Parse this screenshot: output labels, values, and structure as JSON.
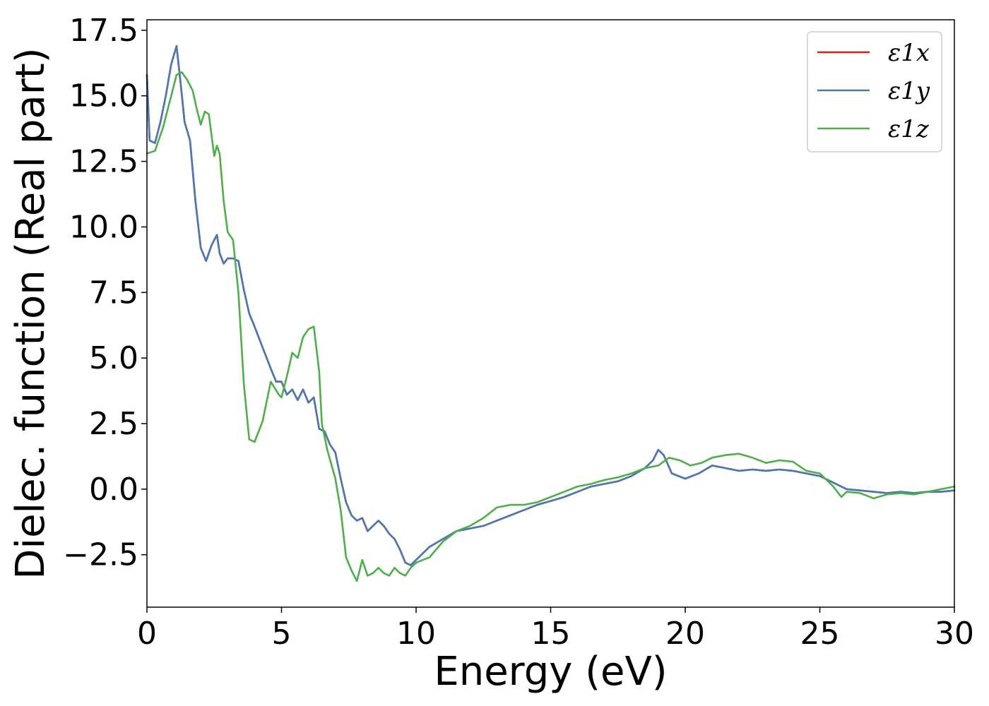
{
  "chart_data": {
    "type": "line",
    "xlabel": "Energy (eV)",
    "ylabel": "Dielec. function (Real part)",
    "xlim": [
      0,
      30
    ],
    "ylim": [
      -4.5,
      17.9
    ],
    "xticks": [
      0,
      5,
      10,
      15,
      20,
      25,
      30
    ],
    "xtick_labels": [
      "0",
      "5",
      "10",
      "15",
      "20",
      "25",
      "30"
    ],
    "yticks": [
      -2.5,
      0.0,
      2.5,
      5.0,
      7.5,
      10.0,
      12.5,
      15.0,
      17.5
    ],
    "ytick_labels": [
      "−2.5",
      "0.0",
      "2.5",
      "5.0",
      "7.5",
      "10.0",
      "12.5",
      "15.0",
      "17.5"
    ],
    "grid": false,
    "legend_position": "top-right",
    "series": [
      {
        "name": "ε1x",
        "color": "#e41a1c",
        "x": [
          0,
          0.1,
          0.3,
          0.5,
          0.7,
          0.9,
          1.1,
          1.25,
          1.4,
          1.6,
          1.8,
          2.0,
          2.2,
          2.4,
          2.6,
          2.7,
          2.85,
          3.0,
          3.2,
          3.4,
          3.6,
          3.8,
          4.0,
          4.3,
          4.6,
          4.8,
          5.0,
          5.2,
          5.4,
          5.6,
          5.8,
          6.0,
          6.2,
          6.4,
          6.6,
          6.8,
          7.0,
          7.2,
          7.4,
          7.6,
          7.8,
          8.0,
          8.2,
          8.4,
          8.6,
          8.8,
          9.0,
          9.2,
          9.4,
          9.6,
          9.8,
          10.0,
          10.5,
          11.0,
          11.5,
          12.0,
          12.5,
          13.0,
          13.5,
          14.0,
          14.5,
          15.0,
          15.5,
          16.0,
          16.5,
          17.0,
          17.5,
          18.0,
          18.5,
          18.8,
          19.0,
          19.2,
          19.5,
          20.0,
          20.5,
          21.0,
          21.5,
          22.0,
          22.5,
          23.0,
          23.5,
          24.0,
          24.5,
          25.0,
          25.5,
          26.0,
          26.5,
          27.0,
          27.5,
          28.0,
          28.5,
          29.0,
          29.5,
          30.0
        ],
        "y": [
          15.8,
          13.3,
          13.2,
          14.0,
          15.0,
          16.2,
          16.9,
          15.5,
          14.0,
          13.3,
          11.0,
          9.2,
          8.7,
          9.3,
          9.7,
          9.0,
          8.6,
          8.8,
          8.8,
          8.7,
          7.6,
          6.7,
          6.2,
          5.4,
          4.6,
          4.1,
          4.1,
          3.6,
          3.8,
          3.4,
          3.8,
          3.3,
          3.5,
          2.3,
          2.2,
          1.7,
          1.4,
          0.4,
          -0.5,
          -1.0,
          -1.2,
          -1.1,
          -1.6,
          -1.4,
          -1.2,
          -1.4,
          -1.7,
          -1.9,
          -2.3,
          -2.8,
          -2.9,
          -2.7,
          -2.2,
          -1.9,
          -1.6,
          -1.5,
          -1.4,
          -1.2,
          -1.0,
          -0.8,
          -0.6,
          -0.45,
          -0.3,
          -0.1,
          0.1,
          0.2,
          0.3,
          0.5,
          0.8,
          1.1,
          1.5,
          1.3,
          0.6,
          0.4,
          0.6,
          0.9,
          0.8,
          0.7,
          0.75,
          0.7,
          0.75,
          0.7,
          0.6,
          0.5,
          0.25,
          0.0,
          -0.05,
          -0.1,
          -0.15,
          -0.1,
          -0.15,
          -0.1,
          -0.1,
          -0.05
        ]
      },
      {
        "name": "ε1y",
        "color": "#4a78b5",
        "x": [
          0,
          0.1,
          0.3,
          0.5,
          0.7,
          0.9,
          1.1,
          1.25,
          1.4,
          1.6,
          1.8,
          2.0,
          2.2,
          2.4,
          2.6,
          2.7,
          2.85,
          3.0,
          3.2,
          3.4,
          3.6,
          3.8,
          4.0,
          4.3,
          4.6,
          4.8,
          5.0,
          5.2,
          5.4,
          5.6,
          5.8,
          6.0,
          6.2,
          6.4,
          6.6,
          6.8,
          7.0,
          7.2,
          7.4,
          7.6,
          7.8,
          8.0,
          8.2,
          8.4,
          8.6,
          8.8,
          9.0,
          9.2,
          9.4,
          9.6,
          9.8,
          10.0,
          10.5,
          11.0,
          11.5,
          12.0,
          12.5,
          13.0,
          13.5,
          14.0,
          14.5,
          15.0,
          15.5,
          16.0,
          16.5,
          17.0,
          17.5,
          18.0,
          18.5,
          18.8,
          19.0,
          19.2,
          19.5,
          20.0,
          20.5,
          21.0,
          21.5,
          22.0,
          22.5,
          23.0,
          23.5,
          24.0,
          24.5,
          25.0,
          25.5,
          26.0,
          26.5,
          27.0,
          27.5,
          28.0,
          28.5,
          29.0,
          29.5,
          30.0
        ],
        "y": [
          15.8,
          13.3,
          13.2,
          14.0,
          15.0,
          16.2,
          16.9,
          15.5,
          14.0,
          13.3,
          11.0,
          9.2,
          8.7,
          9.3,
          9.7,
          9.0,
          8.6,
          8.8,
          8.8,
          8.7,
          7.6,
          6.7,
          6.2,
          5.4,
          4.6,
          4.1,
          4.1,
          3.6,
          3.8,
          3.4,
          3.8,
          3.3,
          3.5,
          2.3,
          2.2,
          1.7,
          1.4,
          0.4,
          -0.5,
          -1.0,
          -1.2,
          -1.1,
          -1.6,
          -1.4,
          -1.2,
          -1.4,
          -1.7,
          -1.9,
          -2.3,
          -2.8,
          -2.9,
          -2.7,
          -2.2,
          -1.9,
          -1.6,
          -1.5,
          -1.4,
          -1.2,
          -1.0,
          -0.8,
          -0.6,
          -0.45,
          -0.3,
          -0.1,
          0.1,
          0.2,
          0.3,
          0.5,
          0.8,
          1.1,
          1.5,
          1.3,
          0.6,
          0.4,
          0.6,
          0.9,
          0.8,
          0.7,
          0.75,
          0.7,
          0.75,
          0.7,
          0.6,
          0.5,
          0.25,
          0.0,
          -0.05,
          -0.1,
          -0.15,
          -0.1,
          -0.15,
          -0.1,
          -0.1,
          -0.05
        ]
      },
      {
        "name": "ε1z",
        "color": "#4daf4a",
        "x": [
          0,
          0.3,
          0.6,
          0.9,
          1.1,
          1.3,
          1.5,
          1.7,
          1.85,
          2.0,
          2.15,
          2.3,
          2.5,
          2.6,
          2.7,
          2.85,
          3.0,
          3.2,
          3.4,
          3.6,
          3.8,
          4.0,
          4.3,
          4.6,
          4.9,
          5.0,
          5.2,
          5.4,
          5.6,
          5.8,
          6.0,
          6.2,
          6.4,
          6.5,
          6.7,
          7.0,
          7.2,
          7.4,
          7.6,
          7.8,
          8.0,
          8.2,
          8.4,
          8.6,
          8.8,
          9.0,
          9.2,
          9.4,
          9.6,
          9.8,
          10.0,
          10.5,
          11.0,
          11.5,
          12.0,
          12.5,
          13.0,
          13.5,
          14.0,
          14.5,
          15.0,
          15.5,
          16.0,
          16.5,
          17.0,
          17.5,
          18.0,
          18.5,
          19.0,
          19.4,
          19.8,
          20.2,
          20.6,
          21.0,
          21.5,
          22.0,
          22.5,
          23.0,
          23.5,
          24.0,
          24.5,
          25.0,
          25.5,
          25.8,
          26.0,
          26.5,
          27.0,
          27.5,
          28.0,
          28.5,
          29.0,
          29.5,
          30.0
        ],
        "y": [
          12.8,
          12.9,
          13.8,
          15.0,
          15.8,
          15.9,
          15.6,
          15.2,
          14.5,
          13.9,
          14.4,
          14.3,
          12.7,
          13.1,
          12.8,
          11.0,
          9.8,
          9.5,
          7.5,
          4.0,
          1.9,
          1.8,
          2.6,
          4.1,
          3.6,
          3.5,
          4.3,
          5.2,
          5.0,
          5.8,
          6.1,
          6.2,
          4.5,
          2.5,
          1.5,
          0.4,
          -0.8,
          -2.6,
          -3.1,
          -3.5,
          -2.7,
          -3.3,
          -3.2,
          -3.0,
          -3.2,
          -3.3,
          -3.0,
          -3.2,
          -3.3,
          -3.0,
          -2.8,
          -2.6,
          -2.0,
          -1.6,
          -1.4,
          -1.1,
          -0.7,
          -0.6,
          -0.6,
          -0.5,
          -0.3,
          -0.1,
          0.1,
          0.2,
          0.35,
          0.45,
          0.6,
          0.8,
          0.9,
          1.2,
          1.1,
          0.9,
          1.0,
          1.2,
          1.3,
          1.35,
          1.2,
          1.0,
          1.1,
          1.05,
          0.7,
          0.6,
          0.1,
          -0.3,
          -0.1,
          -0.15,
          -0.35,
          -0.2,
          -0.15,
          -0.2,
          -0.1,
          0.0,
          0.1
        ]
      }
    ]
  }
}
